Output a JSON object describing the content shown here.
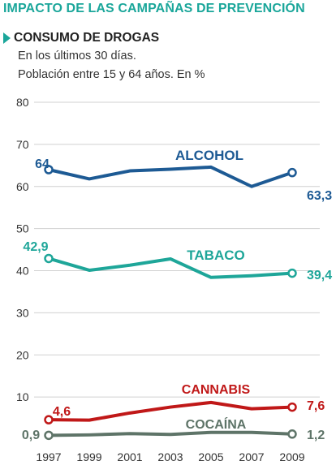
{
  "header": {
    "title": "IMPACTO DE LAS CAMPAÑAS DE PREVENCIÓN",
    "subtitle": "CONSUMO DE DROGAS",
    "note_1": "En los últimos 30 días.",
    "note_2": "Población entre 15 y 64 años. En %"
  },
  "colors": {
    "accent": "#1aa69a",
    "alcohol": "#1d5a94",
    "tabaco": "#1ea699",
    "cannabis": "#c01818",
    "cocaina": "#5e7468",
    "grid": "#d0d0d0"
  },
  "chart_data": {
    "type": "line",
    "x": [
      1997,
      1999,
      2001,
      2003,
      2005,
      2007,
      2009
    ],
    "xticklabels": [
      "1997",
      "1999",
      "2001",
      "2003",
      "2005",
      "2007",
      "2009"
    ],
    "ylim": [
      0,
      80
    ],
    "yticks": [
      10,
      20,
      30,
      40,
      50,
      60,
      70,
      80
    ],
    "grid": true,
    "series": [
      {
        "key": "alcohol",
        "name": "ALCOHOL",
        "values": [
          64,
          61.8,
          63.7,
          64.1,
          64.6,
          60,
          63.3
        ],
        "start_label": "64",
        "end_label": "63,3"
      },
      {
        "key": "tabaco",
        "name": "TABACO",
        "values": [
          42.9,
          40.1,
          41.3,
          42.8,
          38.4,
          38.8,
          39.4
        ],
        "start_label": "42,9",
        "end_label": "39,4"
      },
      {
        "key": "cannabis",
        "name": "CANNABIS",
        "values": [
          4.6,
          4.5,
          6.2,
          7.6,
          8.7,
          7.2,
          7.6
        ],
        "start_label": "4,6",
        "end_label": "7,6"
      },
      {
        "key": "cocaina",
        "name": "COCAÍNA",
        "values": [
          0.9,
          1.0,
          1.3,
          1.1,
          1.6,
          1.6,
          1.2
        ],
        "start_label": "0,9",
        "end_label": "1,2"
      }
    ]
  }
}
